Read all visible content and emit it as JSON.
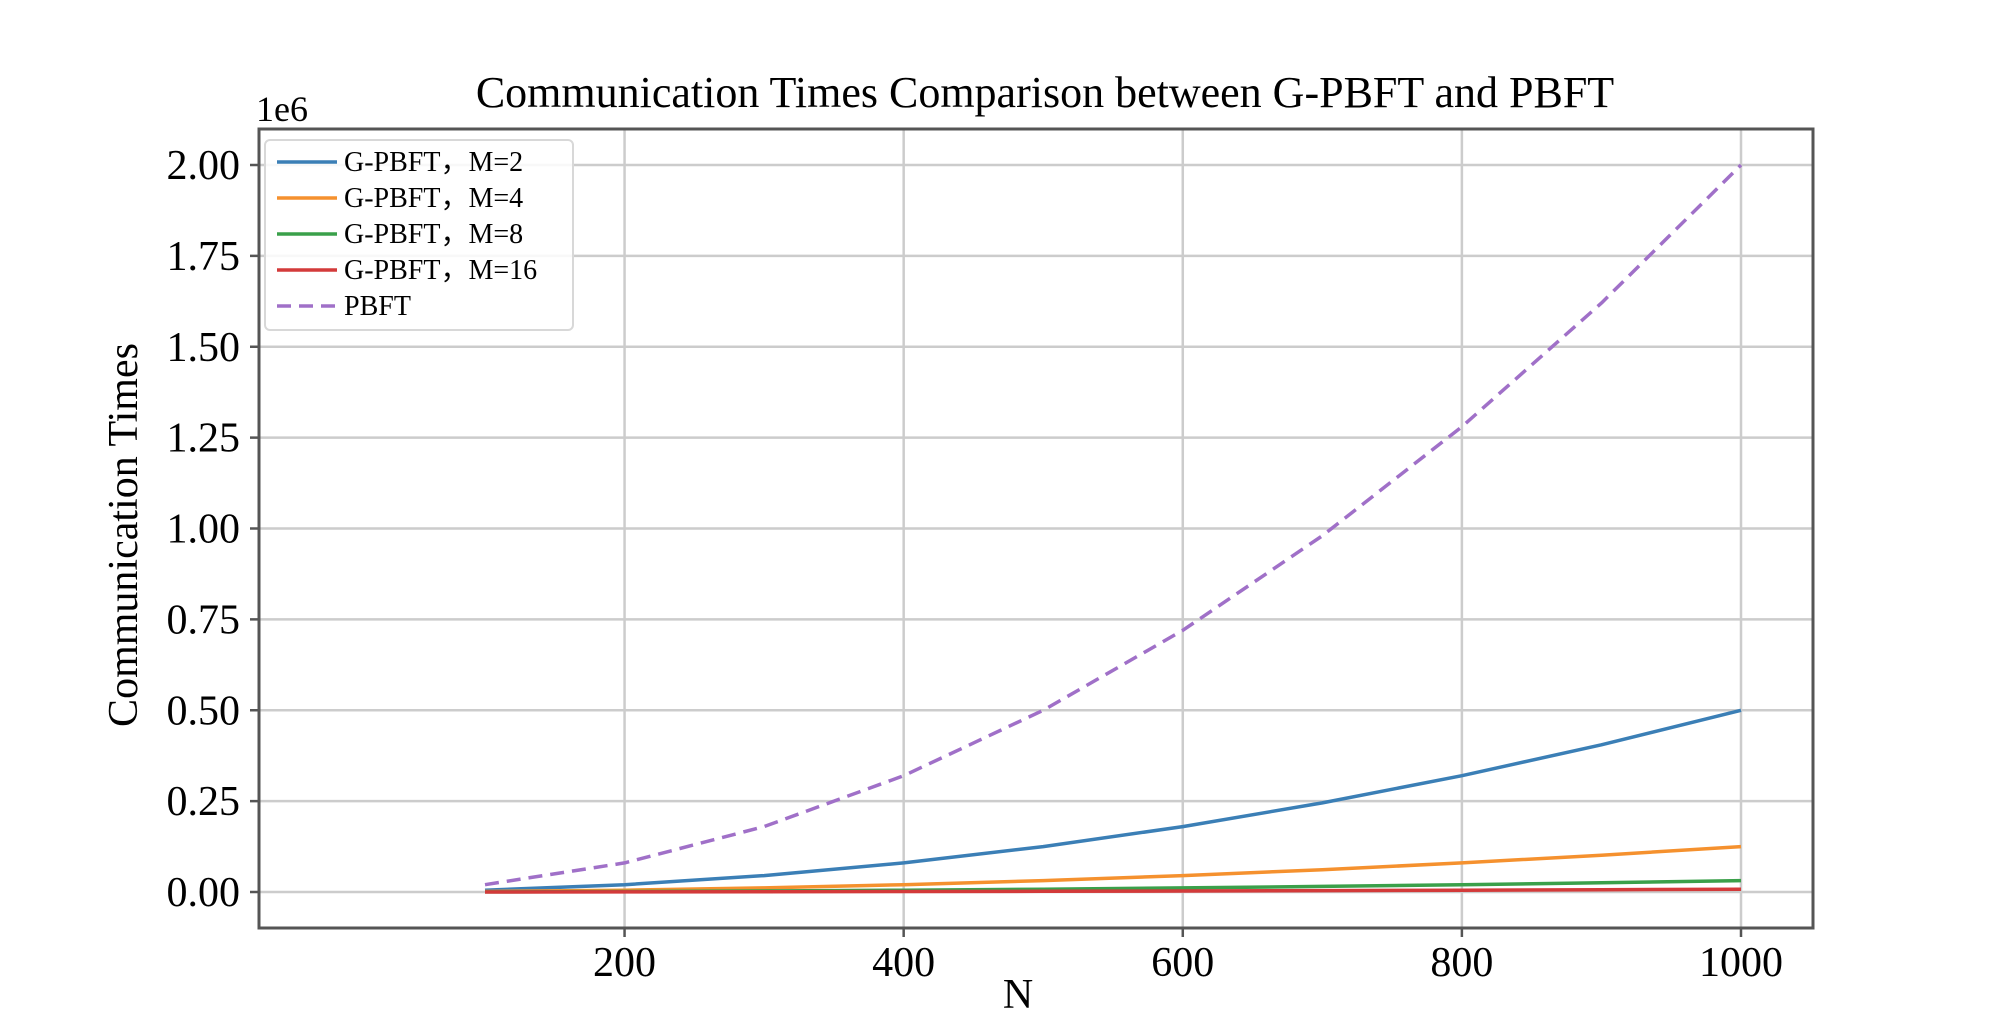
{
  "chart_data": {
    "type": "line",
    "title": "Communication Times Comparison between G-PBFT and PBFT",
    "xlabel": "N",
    "ylabel": "Communication Times",
    "y_offset_label": "1e6",
    "y_scale_factor": 1000000,
    "xlim": [
      65,
      1045
    ],
    "ylim": [
      -20000.0,
      2100000.0
    ],
    "x_ticks": [
      200,
      400,
      600,
      800,
      1000
    ],
    "x_tick_labels": [
      "200",
      "400",
      "600",
      "800",
      "1000"
    ],
    "y_ticks": [
      0,
      250000,
      500000,
      750000,
      1000000,
      1250000,
      1500000,
      1750000,
      2000000
    ],
    "y_tick_labels": [
      "0.00",
      "0.25",
      "0.50",
      "0.75",
      "1.00",
      "1.25",
      "1.50",
      "1.75",
      "2.00"
    ],
    "grid": true,
    "legend_position": "top-left",
    "x": [
      100,
      200,
      300,
      400,
      500,
      600,
      700,
      800,
      900,
      1000
    ],
    "series": [
      {
        "name": "G-PBFT，M=2",
        "color": "#3b7fb6",
        "dash": "solid",
        "values": [
          5000,
          20000,
          45000,
          80000,
          125000,
          180000,
          245000,
          320000,
          405000,
          500000
        ]
      },
      {
        "name": "G-PBFT，M=4",
        "color": "#f5912e",
        "dash": "solid",
        "values": [
          1250,
          5000,
          11250,
          20000,
          31250,
          45000,
          61250,
          80000,
          101250,
          125000
        ]
      },
      {
        "name": "G-PBFT，M=8",
        "color": "#3aa04a",
        "dash": "solid",
        "values": [
          312,
          1250,
          2812,
          5000,
          7812,
          11250,
          15312,
          20000,
          25312,
          31250
        ]
      },
      {
        "name": "G-PBFT，M=16",
        "color": "#d33a3a",
        "dash": "solid",
        "values": [
          78,
          312,
          703,
          1250,
          1953,
          2812,
          3828,
          5000,
          6328,
          7812
        ]
      },
      {
        "name": "PBFT",
        "color": "#a070c8",
        "dash": "dashed",
        "values": [
          20000,
          80000,
          180000,
          320000,
          500000,
          720000,
          980000,
          1280000,
          1620000,
          2000000
        ]
      }
    ]
  }
}
